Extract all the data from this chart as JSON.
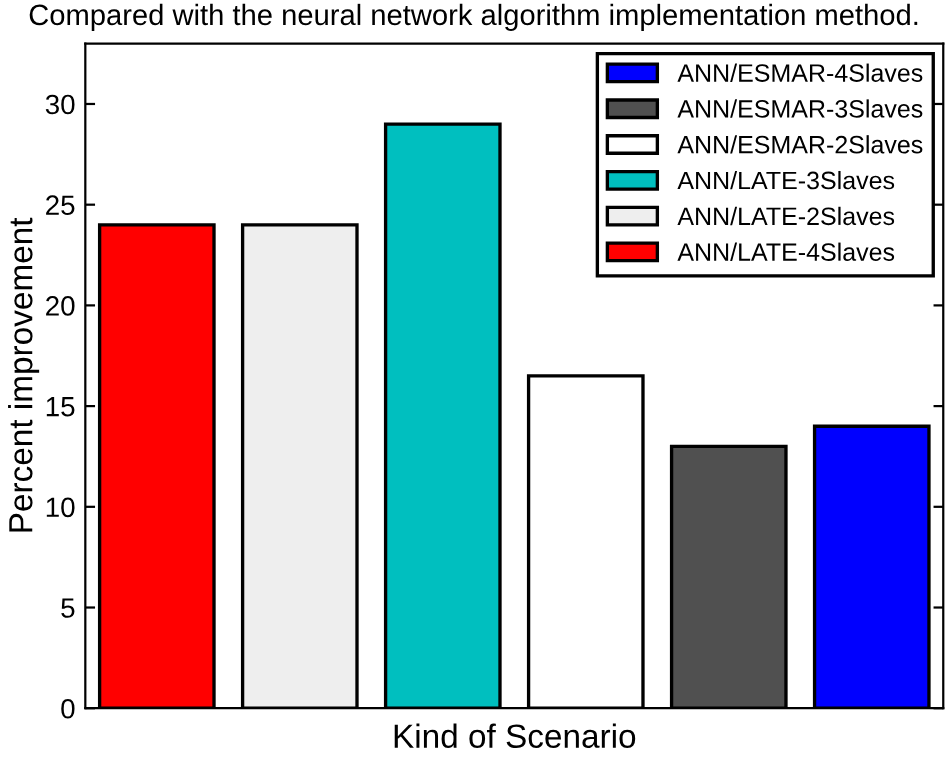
{
  "chart_data": {
    "type": "bar",
    "title": "Compared with the neural network algorithm implementation method.",
    "xlabel": "Kind of Scenario",
    "ylabel": "Percent improvement",
    "categories": [
      null,
      null,
      null,
      null,
      null,
      null
    ],
    "series": [
      {
        "name": "ANN/LATE-4Slaves",
        "color": "#ff0000",
        "values": [
          24,
          null,
          null,
          null,
          null,
          null
        ]
      },
      {
        "name": "ANN/LATE-2Slaves",
        "color": "#eeeeee",
        "values": [
          null,
          24,
          null,
          null,
          null,
          null
        ]
      },
      {
        "name": "ANN/LATE-3Slaves",
        "color": "#00bfbf",
        "values": [
          null,
          null,
          29,
          null,
          null,
          null
        ]
      },
      {
        "name": "ANN/ESMAR-2Slaves",
        "color": "#ffffff",
        "values": [
          null,
          null,
          null,
          16.5,
          null,
          null
        ]
      },
      {
        "name": "ANN/ESMAR-3Slaves",
        "color": "#505050",
        "values": [
          null,
          null,
          null,
          null,
          13,
          null
        ]
      },
      {
        "name": "ANN/ESMAR-4Slaves",
        "color": "#0000ff",
        "values": [
          null,
          null,
          null,
          null,
          null,
          14
        ]
      }
    ],
    "ylim": [
      0,
      33
    ],
    "yticks": [
      0,
      5,
      10,
      15,
      20,
      25,
      30
    ],
    "legend": "top right",
    "grid": false
  }
}
